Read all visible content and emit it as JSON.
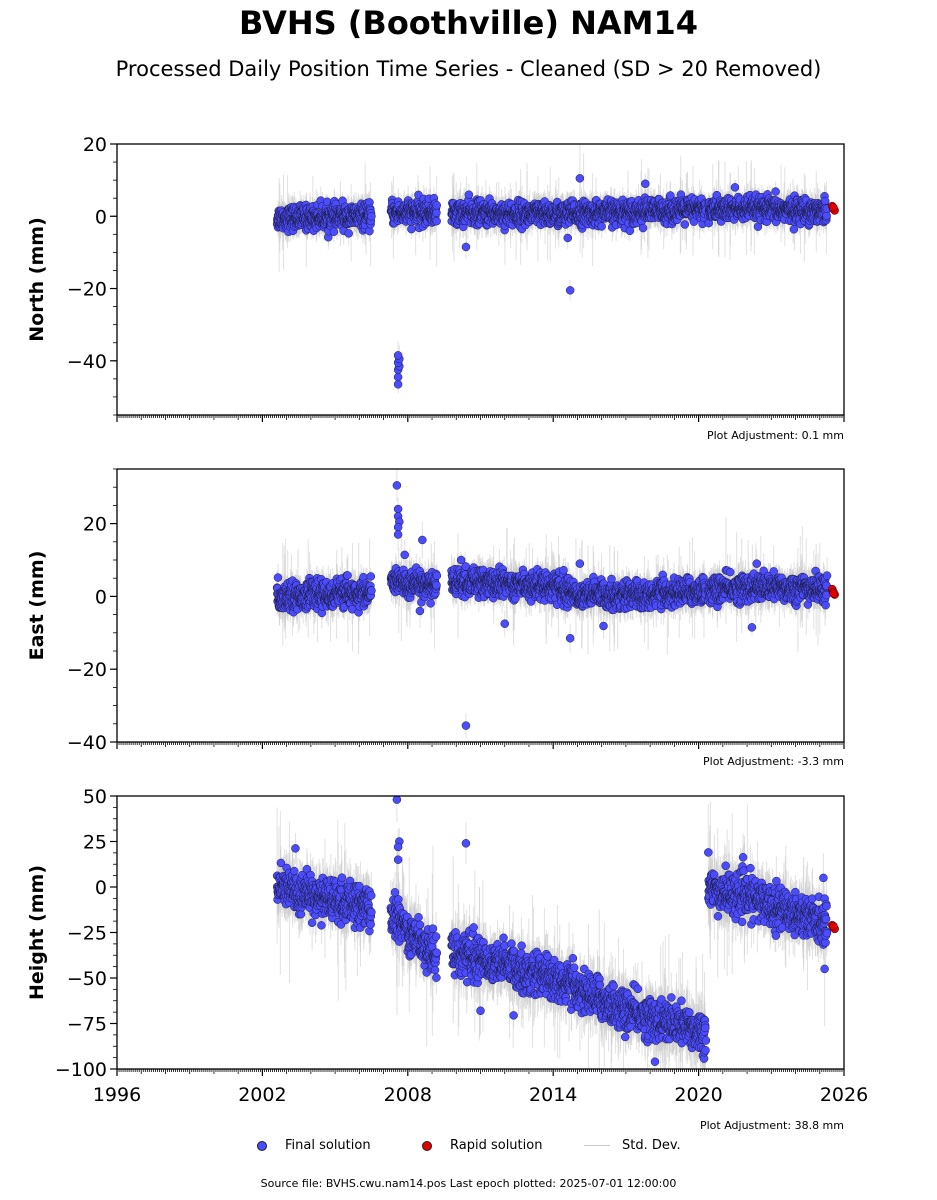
{
  "figure": {
    "title": "BVHS (Boothville) NAM14",
    "subtitle": "Processed Daily Position Time Series - Cleaned (SD > 20 Removed)",
    "source_note": "Source file: BVHS.cwu.nam14.pos  Last epoch plotted: 2025-07-01 12:00:00"
  },
  "legend": {
    "final_label": "Final solution",
    "rapid_label": "Rapid solution",
    "std_label": "Std. Dev.",
    "final_color": "#4b4bff",
    "rapid_color": "#e00000",
    "std_color": "#c8c8c8"
  },
  "chart_data": [
    {
      "type": "scatter",
      "ylabel": "North (mm)",
      "adjustment": "Plot Adjustment: 0.1 mm",
      "xlim": [
        1996,
        2026
      ],
      "ylim": [
        -55,
        20
      ],
      "yticks": [
        20,
        0,
        -20,
        -40
      ],
      "ytick_labels": [
        "20",
        "0",
        "−20",
        "−40"
      ],
      "xticks": [
        1996,
        2002,
        2008,
        2014,
        2020,
        2026
      ],
      "show_xtick_labels": false,
      "trend": [
        [
          2002.6,
          -0.5
        ],
        [
          2006.5,
          0.0
        ],
        [
          2007.3,
          1.0
        ],
        [
          2009.2,
          1.0
        ],
        [
          2009.8,
          1.0
        ],
        [
          2014.0,
          0.5
        ],
        [
          2018.0,
          1.5
        ],
        [
          2022.0,
          2.0
        ],
        [
          2025.3,
          1.5
        ]
      ],
      "scatter_sd": 1.6,
      "outliers": [
        [
          2007.6,
          -46.5
        ],
        [
          2007.6,
          -44.5
        ],
        [
          2007.6,
          -42.5
        ],
        [
          2007.65,
          -41.5
        ],
        [
          2007.6,
          -40.5
        ],
        [
          2007.65,
          -39.5
        ],
        [
          2007.6,
          -38.5
        ],
        [
          2010.4,
          -8.5
        ],
        [
          2014.7,
          -20.5
        ],
        [
          2015.1,
          10.5
        ],
        [
          2017.8,
          9.0
        ],
        [
          2014.6,
          -6.0
        ],
        [
          2021.5,
          8.0
        ]
      ],
      "rapid": [
        [
          2025.35,
          2.8
        ],
        [
          2025.4,
          2.0
        ],
        [
          2025.45,
          1.6
        ],
        [
          2025.4,
          2.4
        ]
      ]
    },
    {
      "type": "scatter",
      "ylabel": "East (mm)",
      "adjustment": "Plot Adjustment: -3.3 mm",
      "xlim": [
        1996,
        2026
      ],
      "ylim": [
        -40,
        35
      ],
      "yticks": [
        20,
        0,
        -20,
        -40
      ],
      "ytick_labels": [
        "20",
        "0",
        "−20",
        "−40"
      ],
      "xticks": [
        1996,
        2002,
        2008,
        2014,
        2020,
        2026
      ],
      "show_xtick_labels": false,
      "trend": [
        [
          2002.6,
          0.0
        ],
        [
          2006.5,
          1.0
        ],
        [
          2007.3,
          4.0
        ],
        [
          2009.2,
          3.0
        ],
        [
          2009.8,
          4.0
        ],
        [
          2014.0,
          3.0
        ],
        [
          2015.0,
          0.5
        ],
        [
          2018.0,
          0.5
        ],
        [
          2022.0,
          2.5
        ],
        [
          2025.3,
          2.0
        ]
      ],
      "scatter_sd": 1.8,
      "outliers": [
        [
          2007.55,
          30.5
        ],
        [
          2007.6,
          24.0
        ],
        [
          2007.6,
          22.0
        ],
        [
          2007.65,
          20.5
        ],
        [
          2007.6,
          19.0
        ],
        [
          2007.6,
          17.0
        ],
        [
          2008.6,
          15.5
        ],
        [
          2010.4,
          -35.5
        ],
        [
          2010.2,
          10.0
        ],
        [
          2015.1,
          9.0
        ],
        [
          2014.7,
          -11.5
        ],
        [
          2012.0,
          -7.5
        ],
        [
          2022.2,
          -8.5
        ],
        [
          2022.4,
          9.0
        ],
        [
          2008.5,
          -4.0
        ]
      ],
      "rapid": [
        [
          2025.35,
          2.0
        ],
        [
          2025.4,
          1.2
        ],
        [
          2025.45,
          0.5
        ],
        [
          2025.4,
          0.8
        ]
      ]
    },
    {
      "type": "scatter",
      "ylabel": "Height (mm)",
      "adjustment": "Plot Adjustment: 38.8 mm",
      "xlim": [
        1996,
        2026
      ],
      "ylim": [
        -100,
        50
      ],
      "yticks": [
        50,
        25,
        0,
        -25,
        -50,
        -75,
        -100
      ],
      "ytick_labels": [
        "50",
        "25",
        "0",
        "−25",
        "−50",
        "−75",
        "−100"
      ],
      "xticks": [
        1996,
        2002,
        2008,
        2014,
        2020,
        2026
      ],
      "xtick_labels": [
        "1996",
        "2002",
        "2008",
        "2014",
        "2020",
        "2026"
      ],
      "show_xtick_labels": true,
      "trend": [
        [
          2002.6,
          0.0
        ],
        [
          2006.5,
          -12.0
        ],
        [
          2007.3,
          -15.0
        ],
        [
          2009.2,
          -38.0
        ],
        [
          2009.8,
          -35.0
        ],
        [
          2014.0,
          -50.0
        ],
        [
          2017.0,
          -68.0
        ],
        [
          2020.3,
          -80.0
        ],
        [
          2020.4,
          -2.0
        ],
        [
          2022.0,
          -5.0
        ],
        [
          2025.3,
          -20.0
        ]
      ],
      "scatter_sd": 5.5,
      "outliers": [
        [
          2007.55,
          48.0
        ],
        [
          2007.65,
          25.0
        ],
        [
          2007.6,
          22.0
        ],
        [
          2007.6,
          15.0
        ],
        [
          2010.4,
          24.0
        ],
        [
          2011.0,
          -68.0
        ],
        [
          2018.2,
          -96.0
        ],
        [
          2020.4,
          19.0
        ],
        [
          2025.2,
          -45.0
        ],
        [
          2025.15,
          5.0
        ]
      ],
      "rapid": [
        [
          2025.35,
          -21.0
        ],
        [
          2025.4,
          -22.0
        ],
        [
          2025.45,
          -23.0
        ],
        [
          2025.4,
          -21.5
        ]
      ]
    }
  ]
}
